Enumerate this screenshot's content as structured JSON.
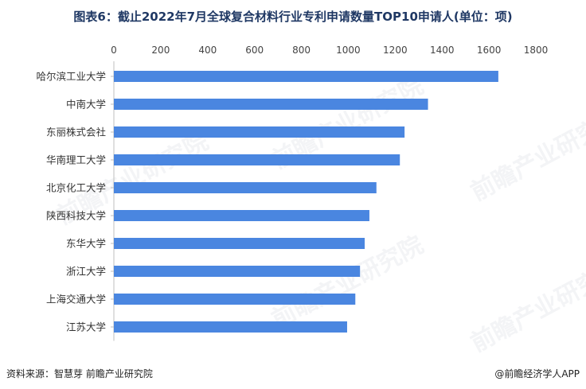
{
  "header": {
    "title": "图表6：截止2022年7月全球复合材料行业专利申请数量TOP10申请人(单位：项)"
  },
  "footer": {
    "source": "资料来源：智慧芽 前瞻产业研究院",
    "brand": "@前瞻经济学人APP"
  },
  "watermark": {
    "text": "前瞻产业研究院"
  },
  "chart_data": {
    "type": "bar",
    "orientation": "horizontal",
    "title": "图表6：截止2022年7月全球复合材料行业专利申请数量TOP10申请人(单位：项)",
    "categories": [
      "哈尔滨工业大学",
      "中南大学",
      "东丽株式会社",
      "华南理工大学",
      "北京化工大学",
      "陕西科技大学",
      "东华大学",
      "浙江大学",
      "上海交通大学",
      "江苏大学"
    ],
    "values": [
      1640,
      1340,
      1240,
      1220,
      1120,
      1090,
      1070,
      1050,
      1030,
      995
    ],
    "xlim": [
      0,
      1800
    ],
    "xticks": [
      0,
      200,
      400,
      600,
      800,
      1000,
      1200,
      1400,
      1600,
      1800
    ],
    "axis_position": "top",
    "grid": false,
    "bar_color": "#4a86e0"
  }
}
